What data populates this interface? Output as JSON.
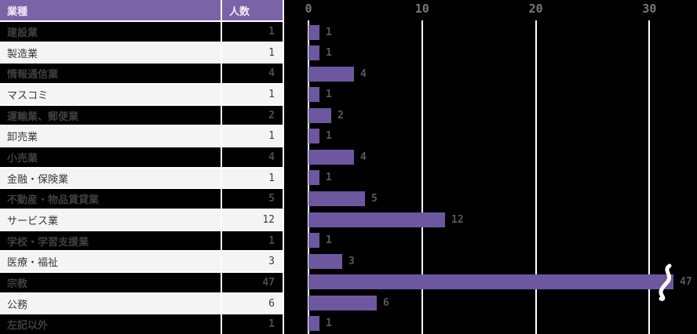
{
  "table": {
    "headers": {
      "industry": "業種",
      "count": "人数"
    },
    "rows": [
      {
        "industry": "建設業",
        "count": "1",
        "value": 1
      },
      {
        "industry": "製造業",
        "count": "1",
        "value": 1
      },
      {
        "industry": "情報通信業",
        "count": "4",
        "value": 4
      },
      {
        "industry": "マスコミ",
        "count": "1",
        "value": 1
      },
      {
        "industry": "運輸業、郵便業",
        "count": "2",
        "value": 2
      },
      {
        "industry": "卸売業",
        "count": "1",
        "value": 1
      },
      {
        "industry": "小売業",
        "count": "4",
        "value": 4
      },
      {
        "industry": "金融・保険業",
        "count": "1",
        "value": 1
      },
      {
        "industry": "不動産・物品賃貸業",
        "count": "5",
        "value": 5
      },
      {
        "industry": "サービス業",
        "count": "12",
        "value": 12
      },
      {
        "industry": "学校・学習支援業",
        "count": "1",
        "value": 1
      },
      {
        "industry": "医療・福祉",
        "count": "3",
        "value": 3
      },
      {
        "industry": "宗教",
        "count": "47",
        "value": 47,
        "truncated": true,
        "display_value": 32.1
      },
      {
        "industry": "公務",
        "count": "6",
        "value": 6
      },
      {
        "industry": "左記以外",
        "count": "1",
        "value": 1
      }
    ]
  },
  "chart_data": {
    "type": "bar",
    "orientation": "horizontal",
    "title": "",
    "xlabel": "",
    "ylabel": "",
    "categories": [
      "建設業",
      "製造業",
      "情報通信業",
      "マスコミ",
      "運輸業、郵便業",
      "卸売業",
      "小売業",
      "金融・保険業",
      "不動産・物品賃貸業",
      "サービス業",
      "学校・学習支援業",
      "医療・福祉",
      "宗教",
      "公務",
      "左記以外"
    ],
    "values": [
      1,
      1,
      4,
      1,
      2,
      1,
      4,
      1,
      5,
      12,
      1,
      3,
      47,
      6,
      1
    ],
    "axis_ticks": [
      0,
      10,
      20,
      30
    ],
    "xlim": [
      0,
      34
    ],
    "grid": true,
    "data_labels": true,
    "annotations": [
      {
        "type": "axis-break",
        "category": "宗教",
        "note": "bar for value 47 truncated at ~32 with break squiggle"
      }
    ]
  },
  "colors": {
    "page_bg": "#000000",
    "header_bg": "#7b63a8",
    "header_text": "#efeaf4",
    "border": "#ffffff",
    "row_dark_bg": "#000000",
    "row_dark_text": "#3f3f3f",
    "row_dark_num": "#4c4c4c",
    "row_light_bg": "#f4f4f4",
    "row_light_text": "#3a3a3a",
    "row_light_num": "#3f3f3f",
    "bar": "#6d589f",
    "bar_label": "#585858",
    "axis_text": "#787878",
    "gridline": "#ffffff",
    "break_mark": "#ffffff"
  }
}
